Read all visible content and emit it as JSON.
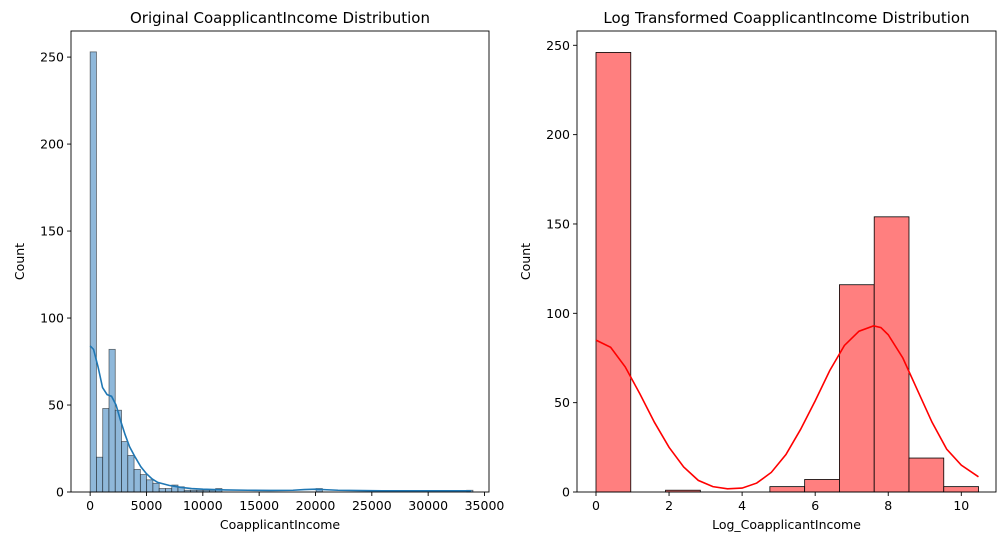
{
  "chart_data": [
    {
      "type": "histogram",
      "title": "Original CoapplicantIncome Distribution",
      "xlabel": "CoapplicantIncome",
      "ylabel": "Count",
      "xlim": [
        -1700,
        35400
      ],
      "ylim": [
        0,
        265
      ],
      "xticks": [
        0,
        5000,
        10000,
        15000,
        20000,
        25000,
        30000,
        35000
      ],
      "xtick_labels": [
        "0",
        "5000",
        "10000",
        "15000",
        "20000",
        "25000",
        "30000",
        "35000"
      ],
      "yticks": [
        0,
        50,
        100,
        150,
        200,
        250
      ],
      "ytick_labels": [
        "0",
        "50",
        "100",
        "150",
        "200",
        "250"
      ],
      "bin_start": 0,
      "bin_width": 557,
      "counts": [
        253,
        20,
        48,
        82,
        47,
        29,
        21,
        13,
        10,
        7,
        5,
        2,
        2,
        4,
        3,
        1,
        1,
        1,
        1,
        1,
        2,
        0,
        0,
        0,
        0,
        0,
        0,
        0,
        0,
        0,
        0,
        0,
        0,
        0,
        0,
        0,
        2,
        0,
        0,
        0,
        0,
        0,
        0,
        0,
        0,
        0,
        0,
        0,
        0,
        0,
        0,
        0,
        0,
        0,
        0,
        0,
        0,
        0,
        0,
        0,
        1
      ],
      "kde": {
        "x": [
          0,
          300,
          700,
          1100,
          1500,
          1900,
          2300,
          2700,
          3100,
          3500,
          4000,
          4500,
          5000,
          5500,
          6000,
          7000,
          8000,
          9000,
          10000,
          11000,
          12000,
          14000,
          16000,
          18000,
          19000,
          20000,
          21000,
          22000,
          24000,
          26000,
          28000,
          30000,
          32000,
          33800
        ],
        "y": [
          84,
          82,
          72,
          60,
          56,
          55,
          50,
          41,
          33,
          26,
          20,
          14.5,
          10.5,
          7.5,
          5.5,
          3.8,
          2.7,
          2,
          1.6,
          1.4,
          1.2,
          1,
          0.9,
          1,
          1.4,
          1.6,
          1.3,
          1,
          0.8,
          0.7,
          0.7,
          0.7,
          0.7,
          0.7
        ]
      },
      "color": "#1f77b4",
      "bar_fill": "#8fb8da"
    },
    {
      "type": "histogram",
      "title": "Log Transformed CoapplicantIncome Distribution",
      "xlabel": "Log_CoapplicantIncome",
      "ylabel": "Count",
      "xlim": [
        -0.52,
        10.95
      ],
      "ylim": [
        0,
        258
      ],
      "xticks": [
        0,
        2,
        4,
        6,
        8,
        10
      ],
      "xtick_labels": [
        "0",
        "2",
        "4",
        "6",
        "8",
        "10"
      ],
      "yticks": [
        0,
        50,
        100,
        150,
        200,
        250
      ],
      "ytick_labels": [
        "0",
        "50",
        "100",
        "150",
        "200",
        "250"
      ],
      "bin_start": 0,
      "bin_width": 0.952,
      "counts": [
        246,
        0,
        1,
        0,
        0,
        3,
        7,
        116,
        154,
        19,
        3
      ],
      "kde": {
        "x": [
          0,
          0.4,
          0.8,
          1.2,
          1.6,
          2.0,
          2.4,
          2.8,
          3.2,
          3.6,
          4.0,
          4.4,
          4.8,
          5.2,
          5.6,
          6.0,
          6.4,
          6.8,
          7.2,
          7.6,
          7.8,
          8.0,
          8.4,
          8.8,
          9.2,
          9.6,
          10.0,
          10.47
        ],
        "y": [
          85,
          81,
          70,
          55,
          39,
          25,
          14,
          6.5,
          3,
          1.8,
          2.2,
          5,
          11,
          21,
          35,
          51,
          68,
          82,
          90,
          93,
          92,
          88,
          75,
          57,
          39,
          24,
          15,
          8.5
        ]
      },
      "color": "#ff0000",
      "bar_fill": "#ff7f7f"
    }
  ]
}
